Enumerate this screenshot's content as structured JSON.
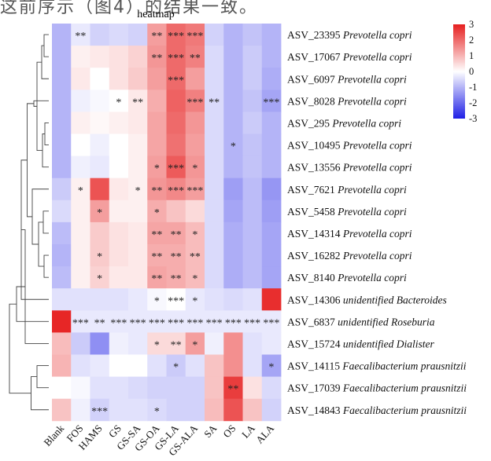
{
  "header": {
    "fragment": "这前序示（图4）的结果一致。"
  },
  "chart_data": {
    "type": "heatmap",
    "title": "heatmap",
    "columns": [
      "Blank",
      "FOS",
      "HAMS",
      "GS",
      "GS-SA",
      "GS-OA",
      "GS-LA",
      "GS-ALA",
      "SA",
      "OS",
      "LA",
      "ALA"
    ],
    "rows": [
      {
        "asv": "ASV_23395",
        "taxon": "Prevotella copri"
      },
      {
        "asv": "ASV_17067",
        "taxon": "Prevotella copri"
      },
      {
        "asv": "ASV_6097",
        "taxon": "Prevotella copri"
      },
      {
        "asv": "ASV_8028",
        "taxon": "Prevotella copri"
      },
      {
        "asv": "ASV_295",
        "taxon": "Prevotella copri"
      },
      {
        "asv": "ASV_10495",
        "taxon": "Prevotella copri"
      },
      {
        "asv": "ASV_13556",
        "taxon": "Prevotella copri"
      },
      {
        "asv": "ASV_7621",
        "taxon": "Prevotella copri"
      },
      {
        "asv": "ASV_5458",
        "taxon": "Prevotella copri"
      },
      {
        "asv": "ASV_14314",
        "taxon": "Prevotella copri"
      },
      {
        "asv": "ASV_16282",
        "taxon": "Prevotella copri"
      },
      {
        "asv": "ASV_8140",
        "taxon": "Prevotella copri"
      },
      {
        "asv": "ASV_14306",
        "taxon": "unidentified Bacteroides"
      },
      {
        "asv": "ASV_6837",
        "taxon": "unidentified Roseburia"
      },
      {
        "asv": "ASV_15724",
        "taxon": "unidentified Dialister"
      },
      {
        "asv": "ASV_14115",
        "taxon": "Faecalibacterium prausnitzii"
      },
      {
        "asv": "ASV_17039",
        "taxon": "Faecalibacterium prausnitzii"
      },
      {
        "asv": "ASV_14843",
        "taxon": "Faecalibacterium prausnitzii"
      }
    ],
    "values": [
      [
        -1.0,
        -0.3,
        -0.6,
        -0.5,
        -0.6,
        1.3,
        2.0,
        1.8,
        -0.6,
        -1.0,
        -0.8,
        -1.0
      ],
      [
        -1.0,
        0.2,
        0.3,
        0.4,
        0.6,
        1.4,
        2.0,
        1.7,
        -0.5,
        -1.0,
        -0.7,
        -1.0
      ],
      [
        -1.0,
        0.3,
        0.0,
        0.4,
        0.7,
        1.3,
        2.0,
        1.3,
        -0.5,
        -1.0,
        -0.7,
        -1.1
      ],
      [
        -1.0,
        -0.2,
        -0.1,
        0.0,
        0.3,
        1.1,
        2.1,
        1.7,
        -0.5,
        -1.0,
        -0.8,
        -1.2
      ],
      [
        -1.0,
        0.2,
        0.1,
        0.2,
        0.3,
        1.2,
        2.0,
        1.4,
        -0.5,
        -1.0,
        -0.7,
        -1.0
      ],
      [
        -1.0,
        0.0,
        -0.2,
        0.0,
        0.2,
        1.2,
        1.9,
        1.3,
        -0.5,
        -1.0,
        -0.8,
        -1.0
      ],
      [
        -1.0,
        -0.2,
        -0.3,
        0.0,
        0.2,
        1.3,
        2.2,
        1.4,
        -0.5,
        -1.0,
        -0.8,
        -1.0
      ],
      [
        -0.7,
        0.2,
        2.3,
        0.3,
        0.2,
        1.4,
        1.6,
        1.3,
        -0.5,
        -1.3,
        -0.9,
        -1.4
      ],
      [
        -0.5,
        0.2,
        1.3,
        0.2,
        0.2,
        1.1,
        0.8,
        0.5,
        -0.5,
        -1.2,
        -0.9,
        -1.3
      ],
      [
        -0.9,
        0.2,
        0.7,
        0.4,
        0.3,
        1.2,
        1.2,
        0.9,
        -0.5,
        -1.1,
        -0.9,
        -1.2
      ],
      [
        -1.0,
        0.2,
        0.7,
        0.4,
        0.3,
        1.1,
        1.1,
        0.9,
        -0.5,
        -1.1,
        -0.9,
        -1.2
      ],
      [
        -0.9,
        0.2,
        0.6,
        0.3,
        0.3,
        1.2,
        1.1,
        0.9,
        -0.5,
        -1.1,
        -0.9,
        -1.2
      ],
      [
        -0.4,
        -0.4,
        -0.4,
        -0.4,
        -0.3,
        -0.1,
        0.0,
        -0.3,
        -0.4,
        -0.5,
        -0.4,
        2.8
      ],
      [
        2.9,
        -0.3,
        -0.3,
        -0.3,
        -0.3,
        -0.3,
        -0.3,
        -0.3,
        -0.3,
        -0.3,
        -0.3,
        -0.3
      ],
      [
        0.9,
        -0.7,
        -1.5,
        -0.2,
        -0.3,
        0.5,
        0.5,
        1.3,
        -0.2,
        1.5,
        -0.4,
        -0.3
      ],
      [
        1.0,
        -0.4,
        -0.3,
        0.0,
        0.0,
        -0.4,
        -0.7,
        -0.4,
        0.8,
        1.5,
        -0.4,
        -1.2
      ],
      [
        0.0,
        -0.1,
        -0.4,
        -0.4,
        -0.5,
        -0.6,
        -0.6,
        -0.6,
        0.8,
        2.6,
        0.4,
        -0.5
      ],
      [
        0.8,
        -0.2,
        -0.6,
        -0.4,
        -0.4,
        -0.5,
        -0.6,
        -0.6,
        0.9,
        2.3,
        0.8,
        -0.6
      ]
    ],
    "significance": [
      [
        "",
        "**",
        "",
        "",
        "",
        "**",
        "***",
        "***",
        "",
        "",
        "",
        ""
      ],
      [
        "",
        "",
        "",
        "",
        "",
        "**",
        "***",
        "**",
        "",
        "",
        "",
        ""
      ],
      [
        "",
        "",
        "",
        "",
        "",
        "",
        "***",
        "",
        "",
        "",
        "",
        ""
      ],
      [
        "",
        "",
        "",
        "*",
        "**",
        "",
        "",
        "***",
        "**",
        "",
        "",
        "***"
      ],
      [
        "",
        "",
        "",
        "",
        "",
        "",
        "",
        "",
        "",
        "",
        "",
        ""
      ],
      [
        "",
        "",
        "",
        "",
        "",
        "",
        "",
        "",
        "",
        "*",
        "",
        ""
      ],
      [
        "",
        "",
        "",
        "",
        "",
        "*",
        "***",
        "*",
        "",
        "",
        "",
        ""
      ],
      [
        "",
        "*",
        "",
        "",
        "*",
        "**",
        "***",
        "***",
        "",
        "",
        "",
        ""
      ],
      [
        "",
        "",
        "*",
        "",
        "",
        "*",
        "",
        "",
        "",
        "",
        "",
        ""
      ],
      [
        "",
        "",
        "",
        "",
        "",
        "**",
        "**",
        "*",
        "",
        "",
        "",
        ""
      ],
      [
        "",
        "",
        "*",
        "",
        "",
        "**",
        "**",
        "**",
        "",
        "",
        "",
        ""
      ],
      [
        "",
        "",
        "*",
        "",
        "",
        "**",
        "**",
        "*",
        "",
        "",
        "",
        ""
      ],
      [
        "",
        "",
        "",
        "",
        "",
        "*",
        "***",
        "*",
        "",
        "",
        "",
        ""
      ],
      [
        "",
        "***",
        "**",
        "***",
        "***",
        "***",
        "***",
        "***",
        "***",
        "***",
        "***",
        "***"
      ],
      [
        "",
        "",
        "",
        "",
        "",
        "*",
        "**",
        "*",
        "",
        "",
        "",
        ""
      ],
      [
        "",
        "",
        "",
        "",
        "",
        "",
        "*",
        "",
        "",
        "",
        "",
        "*"
      ],
      [
        "",
        "",
        "",
        "",
        "",
        "",
        "",
        "",
        "",
        "**",
        "",
        ""
      ],
      [
        "",
        "",
        "***",
        "",
        "",
        "*",
        "",
        "",
        "",
        "",
        "",
        ""
      ]
    ],
    "legend": {
      "ticks": [
        3,
        2,
        1,
        0,
        -1,
        -2,
        -3
      ],
      "min": -3,
      "max": 3,
      "colors": {
        "low": "#1f1fe6",
        "mid": "#ffffff",
        "high": "#e61f1f"
      }
    },
    "dendrogram": {
      "merges": [
        [
          0,
          1
        ],
        [
          18,
          2
        ],
        [
          4,
          5
        ],
        [
          20,
          6
        ],
        [
          19,
          21
        ],
        [
          22,
          3
        ],
        [
          8,
          9
        ],
        [
          10,
          11
        ],
        [
          24,
          25
        ],
        [
          26,
          7
        ],
        [
          23,
          27
        ],
        [
          15,
          16
        ],
        [
          29,
          17
        ],
        [
          28,
          12
        ],
        [
          31,
          14
        ],
        [
          32,
          13
        ],
        [
          33,
          30
        ]
      ],
      "heights": [
        0.12,
        0.18,
        0.1,
        0.16,
        0.3,
        0.38,
        0.14,
        0.12,
        0.26,
        0.42,
        0.55,
        0.3,
        0.45,
        0.7,
        0.6,
        0.82,
        1.0
      ]
    }
  }
}
